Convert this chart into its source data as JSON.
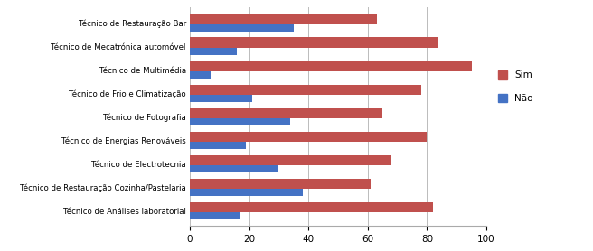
{
  "categories": [
    "Técnico de Análises laboratorial",
    "Técnico de Restauração Cozinha/Pastelaria",
    "Técnico de Electrotecnia",
    "Técnico de Energias Renováveis",
    "Técnico de Fotografia",
    "Técnico de Frio e Climatização",
    "Técnico de Multimédia",
    "Técnico de Mecatrónica automóvel",
    "Técnico de Restauração Bar"
  ],
  "sim_values": [
    82,
    61,
    68,
    80,
    65,
    78,
    95,
    84,
    63
  ],
  "nao_values": [
    17,
    38,
    30,
    19,
    34,
    21,
    7,
    16,
    35
  ],
  "sim_color": "#C0504D",
  "nao_color": "#4472C4",
  "xlim": [
    0,
    100
  ],
  "xticks": [
    0,
    20,
    40,
    60,
    80,
    100
  ],
  "legend_sim": "Sim",
  "legend_nao": "Não",
  "background_color": "#FFFFFF",
  "sim_bar_height": 0.45,
  "nao_bar_height": 0.3,
  "grid_color": "#BBBBBB"
}
